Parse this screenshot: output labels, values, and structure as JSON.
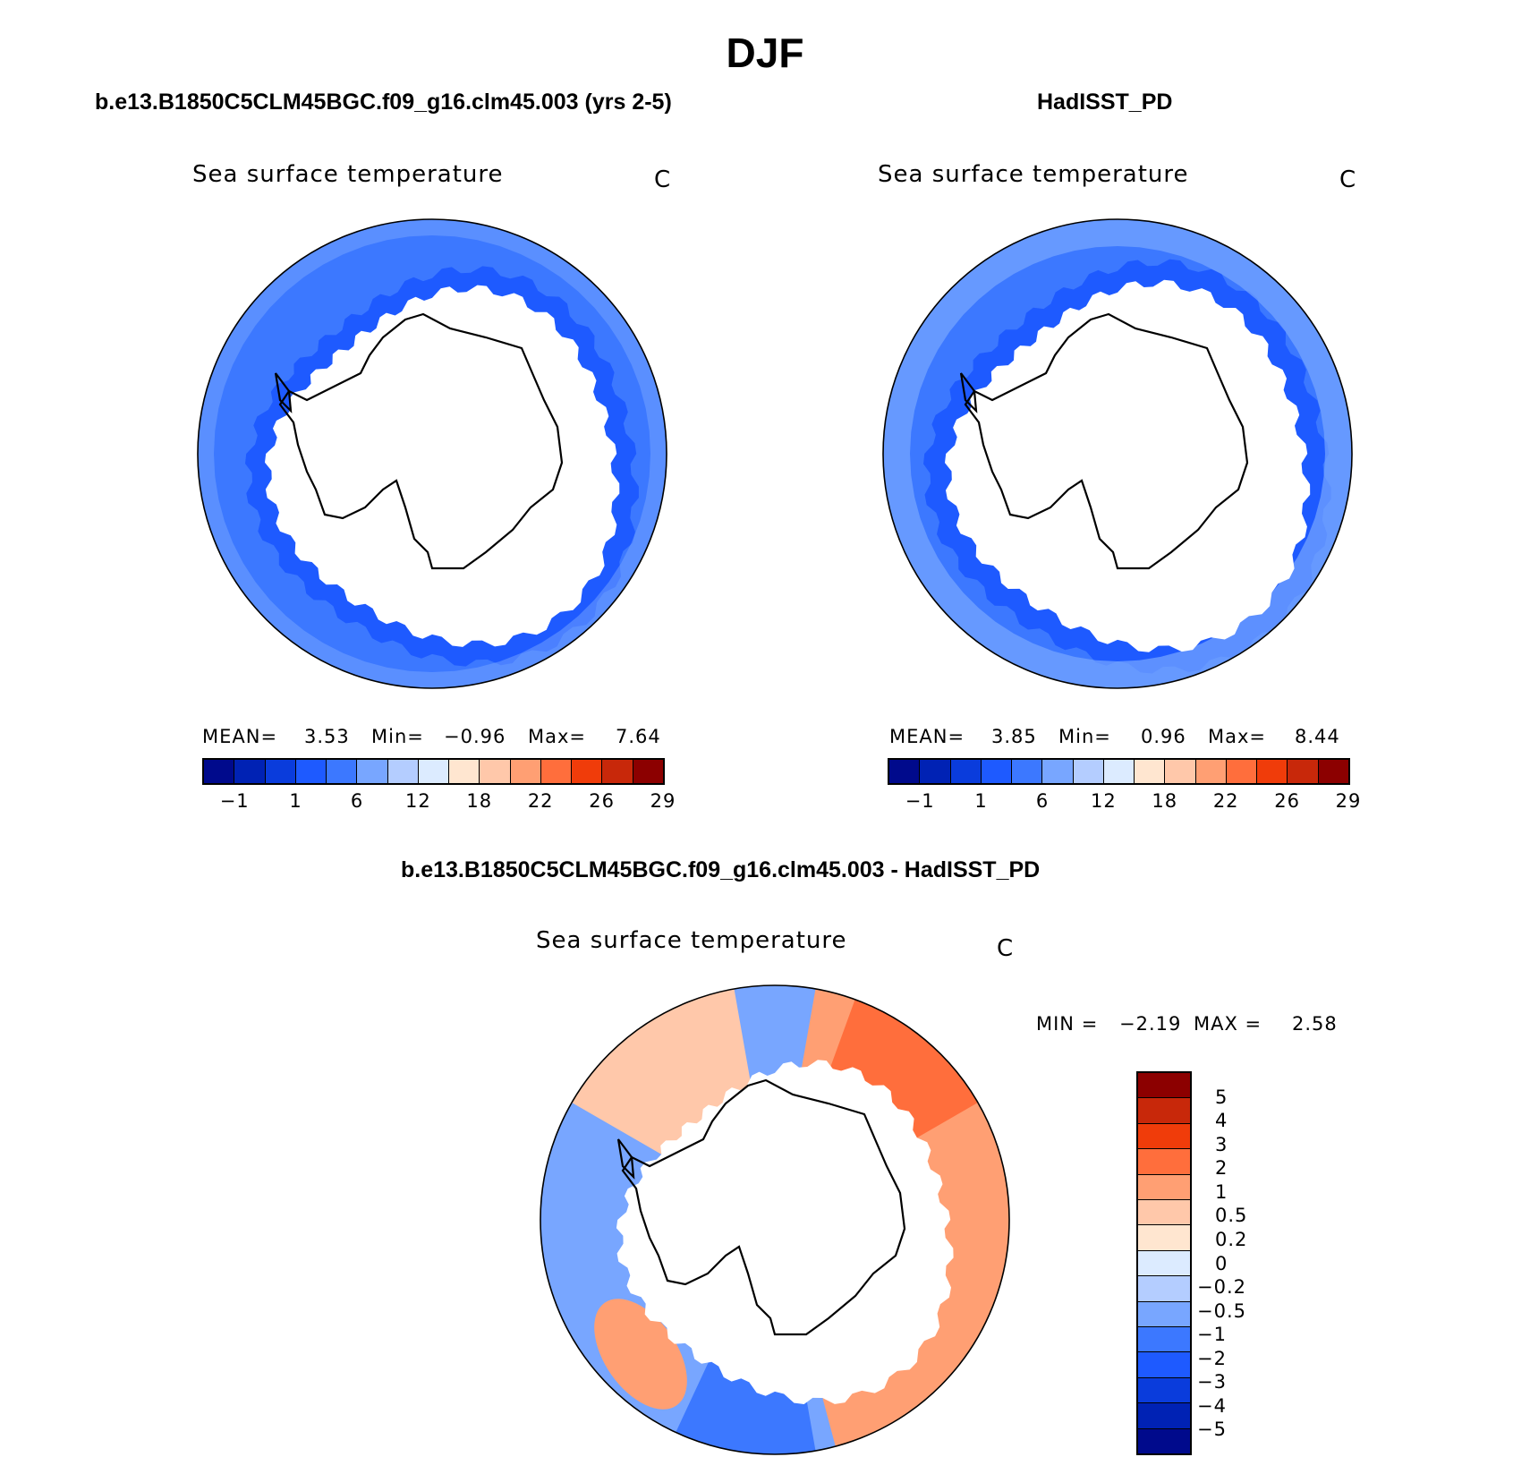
{
  "figure": {
    "season": "DJF",
    "panel_model_title": "b.e13.B1850C5CLM45BGC.f09_g16.clm45.003 (yrs 2-5)",
    "panel_obs_title": "HadISST_PD",
    "panel_diff_title": "b.e13.B1850C5CLM45BGC.f09_g16.clm45.003 - HadISST_PD"
  },
  "panels": {
    "model": {
      "variable": "Sea surface temperature",
      "units": "C",
      "mean_label": "MEAN=",
      "mean": "3.53",
      "min_label": "Min=",
      "min": "−0.96",
      "max_label": "Max=",
      "max": "7.64"
    },
    "obs": {
      "variable": "Sea surface temperature",
      "units": "C",
      "mean_label": "MEAN=",
      "mean": "3.85",
      "min_label": "Min=",
      "min": "0.96",
      "max_label": "Max=",
      "max": "8.44"
    },
    "diff": {
      "variable": "Sea surface temperature",
      "units": "C",
      "min_label": "MIN =",
      "min": "−2.19",
      "max_label": "MAX =",
      "max": "2.58"
    }
  },
  "colors": {
    "abs_palette": [
      "#000a8c",
      "#0022b4",
      "#0a3cdc",
      "#1e5aff",
      "#3c78ff",
      "#78a6ff",
      "#b4cdff",
      "#dcebff",
      "#ffe6d0",
      "#ffc8aa",
      "#ff9f73",
      "#ff6e3c",
      "#f03c0a",
      "#c8280a",
      "#8c0000"
    ],
    "diff_palette": [
      "#000a8c",
      "#0022b4",
      "#0a3cdc",
      "#1e5aff",
      "#3c78ff",
      "#78a6ff",
      "#b4cdff",
      "#dcebff",
      "#ffe6d0",
      "#ffc8aa",
      "#ff9f73",
      "#ff6e3c",
      "#f03c0a",
      "#c8280a",
      "#8c0000"
    ],
    "land": "#ffffff",
    "coast": "#000000"
  },
  "chart_data": [
    {
      "type": "heatmap",
      "projection": "south polar stereographic",
      "title": "b.e13.B1850C5CLM45BGC.f09_g16.clm45.003 (yrs 2-5)",
      "subtitle": "Sea surface temperature",
      "units": "C",
      "colorbar_ticks": [
        "−1",
        "1",
        "6",
        "12",
        "18",
        "22",
        "26",
        "29"
      ],
      "stats": {
        "mean": 3.53,
        "min": -0.96,
        "max": 7.64
      }
    },
    {
      "type": "heatmap",
      "projection": "south polar stereographic",
      "title": "HadISST_PD",
      "subtitle": "Sea surface temperature",
      "units": "C",
      "colorbar_ticks": [
        "−1",
        "1",
        "6",
        "12",
        "18",
        "22",
        "26",
        "29"
      ],
      "stats": {
        "mean": 3.85,
        "min": 0.96,
        "max": 8.44
      }
    },
    {
      "type": "heatmap",
      "projection": "south polar stereographic",
      "title": "b.e13.B1850C5CLM45BGC.f09_g16.clm45.003 - HadISST_PD",
      "subtitle": "Sea surface temperature",
      "units": "C",
      "colorbar_ticks": [
        "5",
        "4",
        "3",
        "2",
        "1",
        "0.5",
        "0.2",
        "0",
        "−0.2",
        "−0.5",
        "−1",
        "−2",
        "−3",
        "−4",
        "−5"
      ],
      "stats": {
        "min": -2.19,
        "max": 2.58
      }
    }
  ]
}
